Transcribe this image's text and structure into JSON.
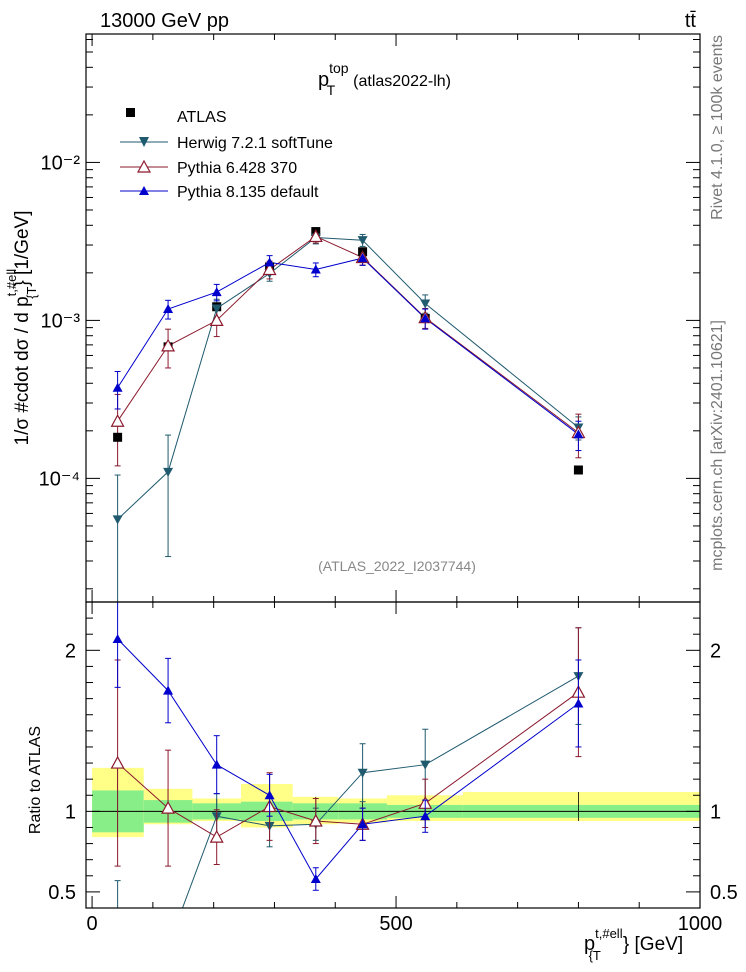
{
  "header": {
    "energy_label": "13000 GeV pp",
    "process_label": "tt̄"
  },
  "side_labels": {
    "rivet": "Rivet 4.1.0, ≥ 100k events",
    "site": "mcplots.cern.ch [arXiv:2401.10621]"
  },
  "chart_data": {
    "type": "line",
    "title_main": "p",
    "title_sup": "top",
    "title_sub": "T",
    "title_suffix": "(atlas2022-lh)",
    "analysis_id": "(ATLAS_2022_I2037744)",
    "ylabel": "1/σ #cdot dσ / d p",
    "ylabel_sup": "t,#ell",
    "ylabel_sub": "{T",
    "ylabel_unit": "} [1/GeV]",
    "xlabel_main": "p",
    "xlabel_sup": "t,#ell",
    "xlabel_sub": "{T",
    "xlabel_unit": "} [GeV]",
    "ratio_ylabel": "Ratio to ATLAS",
    "xlim": [
      -10,
      1000
    ],
    "ylim": [
      1.65e-05,
      0.065
    ],
    "ratio_ylim": [
      0.4,
      2.3
    ],
    "x_ticks": [
      0,
      500,
      1000
    ],
    "x_tick_labels": [
      "0",
      "500",
      "1000"
    ],
    "y_ticks": [
      0.0001,
      0.001,
      0.01
    ],
    "y_tick_labels": [
      "10⁻⁴",
      "10⁻³",
      "10⁻²"
    ],
    "ratio_ticks": [
      0.5,
      1,
      2
    ],
    "ratio_tick_labels": [
      "0.5",
      "1",
      "2"
    ],
    "bins": [
      [
        0,
        85
      ],
      [
        85,
        165
      ],
      [
        165,
        245
      ],
      [
        245,
        330
      ],
      [
        330,
        405
      ],
      [
        405,
        485
      ],
      [
        485,
        610
      ],
      [
        610,
        1000
      ]
    ],
    "x": [
      42,
      125,
      205,
      292,
      368,
      445,
      548,
      800
    ],
    "data": {
      "name": "ATLAS",
      "values": [
        0.000182,
        0.00068,
        0.00122,
        0.00218,
        0.00365,
        0.00272,
        0.00103,
        0.000113
      ],
      "band_inner": [
        [
          0.87,
          1.13
        ],
        [
          0.93,
          1.07
        ],
        [
          0.95,
          1.05
        ],
        [
          0.94,
          1.06
        ],
        [
          0.95,
          1.05
        ],
        [
          0.95,
          1.05
        ],
        [
          0.96,
          1.04
        ],
        [
          0.96,
          1.04
        ]
      ],
      "band_outer": [
        [
          0.84,
          1.27
        ],
        [
          0.92,
          1.14
        ],
        [
          0.94,
          1.08
        ],
        [
          0.9,
          1.17
        ],
        [
          0.92,
          1.09
        ],
        [
          0.93,
          1.08
        ],
        [
          0.94,
          1.1
        ],
        [
          0.94,
          1.12
        ]
      ]
    },
    "series": [
      {
        "name": "Herwig 7.2.1 softTune",
        "color": "#1f5a6e",
        "marker": "triangle-down",
        "values": [
          5.5e-05,
          0.00011,
          0.00119,
          0.00198,
          0.00335,
          0.00322,
          0.00128,
          0.00021
        ],
        "err_lo": [
          5.4e-05,
          7.8e-05,
          0.00017,
          0.00021,
          0.0003,
          0.00028,
          0.00017,
          3.5e-05
        ],
        "err_hi": [
          5e-05,
          7.8e-05,
          0.00017,
          0.00021,
          0.0003,
          0.00028,
          0.00017,
          3.5e-05
        ],
        "ratio": [
          0.3,
          0.16,
          0.97,
          0.91,
          0.92,
          1.24,
          1.29,
          1.84
        ],
        "ratio_err": [
          0.27,
          0.11,
          0.14,
          0.13,
          0.1,
          0.18,
          0.22,
          0.3
        ]
      },
      {
        "name": "Pythia 6.428 370",
        "color": "#8b1a2e",
        "marker": "triangle-open",
        "values": [
          0.00023,
          0.00069,
          0.001,
          0.0021,
          0.0034,
          0.0025,
          0.00104,
          0.000195
        ],
        "err_lo": [
          0.00011,
          0.00019,
          0.00021,
          0.00027,
          0.00031,
          0.00026,
          0.00015,
          6e-05
        ],
        "err_hi": [
          0.00011,
          0.00019,
          0.00021,
          0.00027,
          0.00031,
          0.00026,
          0.00015,
          6e-05
        ],
        "ratio": [
          1.3,
          1.02,
          0.84,
          1.03,
          0.94,
          0.92,
          1.05,
          1.74
        ],
        "ratio_err": [
          0.64,
          0.36,
          0.17,
          0.21,
          0.14,
          0.1,
          0.15,
          0.4
        ]
      },
      {
        "name": "Pythia 8.135 default",
        "color": "#0000cc",
        "marker": "triangle-up",
        "values": [
          0.000375,
          0.00118,
          0.00151,
          0.00233,
          0.0021,
          0.00248,
          0.00103,
          0.00019
        ],
        "err_lo": [
          0.0001,
          0.00016,
          0.00018,
          0.00024,
          0.00021,
          0.00025,
          0.00015,
          4e-05
        ],
        "err_hi": [
          0.0001,
          0.00016,
          0.00018,
          0.00024,
          0.00021,
          0.00025,
          0.00015,
          4e-05
        ],
        "ratio": [
          2.07,
          1.75,
          1.29,
          1.1,
          0.58,
          0.92,
          0.97,
          1.67
        ],
        "ratio_err": [
          0.3,
          0.2,
          0.18,
          0.13,
          0.07,
          0.1,
          0.1,
          0.27
        ]
      }
    ]
  }
}
